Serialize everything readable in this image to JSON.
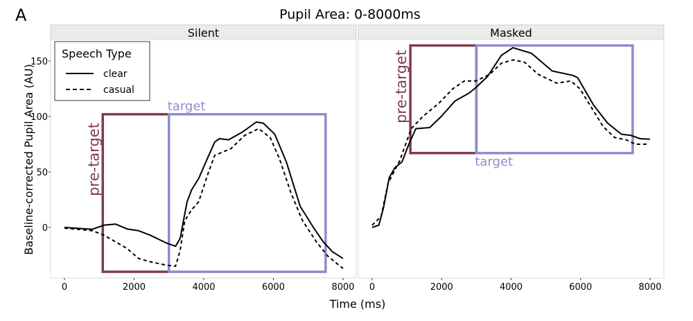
{
  "panel_letter": "A",
  "chart_data": {
    "type": "line",
    "title": "Pupil Area: 0-8000ms",
    "xlabel": "Time (ms)",
    "ylabel": "Baseline-corrected Pupil Area (AU)",
    "xlim": [
      -400,
      8400
    ],
    "ylim": [
      -48,
      168
    ],
    "xticks": [
      0,
      2000,
      4000,
      6000,
      8000
    ],
    "yticks": [
      0,
      50,
      100,
      150
    ],
    "grid": false,
    "legend": {
      "title": "Speech Type",
      "placement": "top-left",
      "entries": [
        {
          "name": "clear",
          "style": "solid"
        },
        {
          "name": "casual",
          "style": "dashed"
        }
      ]
    },
    "colors": {
      "pre_target": "#7e3d4b",
      "target": "#8c8cce",
      "strip": "#ebebeb"
    },
    "panels": [
      {
        "name": "Silent",
        "windows": [
          {
            "label": "pre-target",
            "x": [
              1100,
              3000
            ],
            "y": [
              -40,
              102
            ]
          },
          {
            "label": "target",
            "x": [
              3000,
              7500
            ],
            "y": [
              -40,
              102
            ]
          }
        ],
        "series": [
          {
            "name": "clear",
            "x": [
              0,
              800,
              1135,
              1466,
              1797,
              2129,
              2460,
              2924,
              3190,
              3322,
              3521,
              3653,
              3852,
              4117,
              4316,
              4449,
              4714,
              5112,
              5510,
              5709,
              6040,
              6372,
              6770,
              7168,
              7433,
              7698,
              8000
            ],
            "y": [
              0,
              -1.7,
              2,
              3,
              -1.4,
              -3,
              -7,
              -14,
              -17,
              -10,
              23,
              34,
              44,
              63,
              77,
              80,
              79,
              86,
              95,
              94,
              84,
              59,
              19,
              -1,
              -13,
              -22,
              -28
            ]
          },
          {
            "name": "casual",
            "x": [
              0,
              800,
              1135,
              1466,
              1797,
              2129,
              2460,
              2924,
              3190,
              3322,
              3455,
              3653,
              3852,
              4117,
              4316,
              4780,
              5178,
              5576,
              5908,
              6173,
              6505,
              6837,
              7235,
              7567,
              8000
            ],
            "y": [
              -0.6,
              -3,
              -7,
              -13,
              -19,
              -28,
              -31,
              -34,
              -35,
              -21,
              6,
              16,
              23,
              48,
              65,
              71,
              83,
              89,
              81,
              62,
              31,
              6,
              -13,
              -26,
              -37
            ]
          }
        ]
      },
      {
        "name": "Masked",
        "windows": [
          {
            "label": "pre-target",
            "x": [
              1100,
              3000
            ],
            "y": [
              67,
              164
            ]
          },
          {
            "label": "target",
            "x": [
              3000,
              7500
            ],
            "y": [
              67,
              164
            ]
          }
        ],
        "series": [
          {
            "name": "clear",
            "x": [
              0,
              193,
              326,
              493,
              659,
              858,
              1058,
              1257,
              1657,
              1989,
              2388,
              2787,
              2987,
              3320,
              3719,
              4052,
              4584,
              5183,
              5782,
              5915,
              6381,
              6780,
              7179,
              7445,
              7711,
              8000
            ],
            "y": [
              0,
              2,
              17.5,
              45,
              54,
              59,
              75,
              89,
              90,
              100,
              114,
              121,
              126,
              136,
              155,
              162,
              157,
              141,
              137,
              135,
              110,
              94,
              84,
              83,
              80,
              79.5
            ]
          },
          {
            "name": "casual",
            "x": [
              0,
              260,
              460,
              792,
              1125,
              1458,
              1923,
              2323,
              2656,
              2987,
              3387,
              3719,
              4052,
              4384,
              4783,
              5315,
              5715,
              5981,
              6314,
              6647,
              6980,
              7312,
              7578,
              7978
            ],
            "y": [
              2,
              10,
              40,
              60,
              89,
              100,
              112,
              125,
              132,
              132,
              138,
              148,
              151,
              149,
              138,
              130,
              132,
              125,
              108,
              91,
              81,
              79,
              75,
              75
            ]
          }
        ]
      }
    ]
  }
}
